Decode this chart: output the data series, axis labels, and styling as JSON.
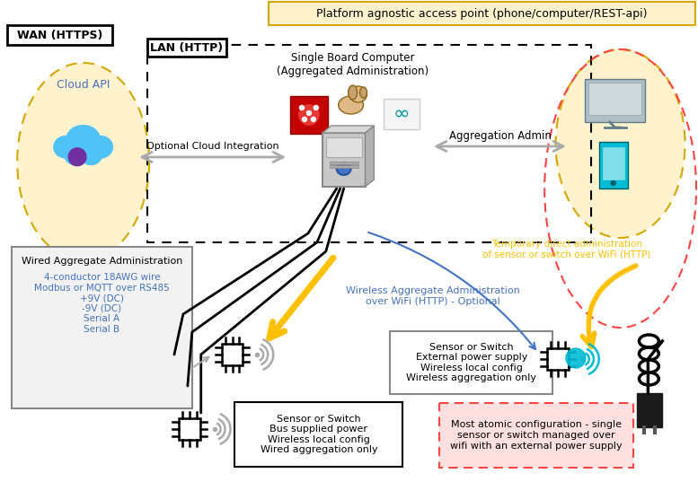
{
  "title": "Platform agnostic access point (phone/computer/REST-api)",
  "wan_label": "WAN (HTTPS)",
  "lan_label": "LAN (HTTP)",
  "cloud_label": "Cloud API",
  "sbc_label": "Single Board Computer\n(Aggregated Administration)",
  "agg_admin_label": "Aggregation Admin",
  "optional_cloud_label": "Optional Cloud Integration",
  "wired_agg_title": "Wired Aggregate Administration",
  "wired_agg_details": "4-conductor 18AWG wire\nModbus or MQTT over RS485\n+9V (DC)\n-9V (DC)\nSerial A\nSerial B",
  "wireless_agg_label": "Wireless Aggregate Administration\nover WiFi (HTTP) - Optional",
  "temp_direct_label": "Temporary direct administration\nof sensor or switch over WiFi (HTTP)",
  "sensor_switch_wired_label": "Sensor or Switch\nBus supplied power\nWireless local config\nWired aggregation only",
  "sensor_switch_wireless_label": "Sensor or Switch\nExternal power supply\nWireless local config\nWireless aggregation only",
  "most_atomic_label": "Most atomic configuration - single\nsensor or switch managed over\nwifi with an external power supply",
  "bg_color": "#FFFFFF",
  "wan_ellipse_color": "#FFF2CC",
  "platform_bg": "#FFF2CC",
  "platform_border": "#D4A800",
  "atomic_box_color": "#FFE0E0",
  "orange_arrow_color": "#FFC000",
  "orange_text_color": "#FFC000",
  "blue_text_color": "#4472C4",
  "blue_arrow_color": "#4472C4",
  "red_dashed_color": "#FF4444"
}
